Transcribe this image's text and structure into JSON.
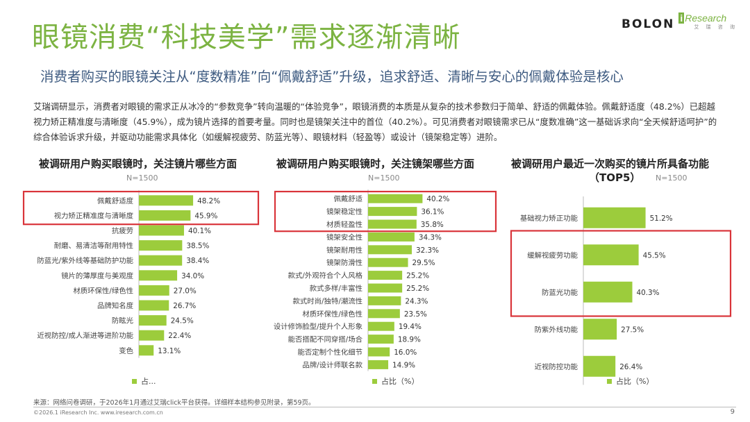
{
  "header": {
    "brand": "BOLON",
    "partner_logo": "iResearch",
    "partner_logo_sub": "艾 瑞 咨 询",
    "title": "眼镜消费“科技美学”需求逐渐清晰",
    "subtitle": "消费者购买的眼镜关注从“度数精准”向“佩戴舒适”升级，追求舒适、清晰与安心的佩戴体验是核心"
  },
  "intro": "艾瑞调研显示，消费者对眼镜的需求正从冰冷的“参数竞争”转向温暖的“体验竞争”，眼镜消费的本质是从复杂的技术参数归于简单、舒适的佩戴体验。佩戴舒适度（48.2%）已超越视力矫正精准度与清晰度（45.9%），成为镜片选择的首要考量。同时也是镜架关注中的首位（40.2%）。可见消费者对眼镜需求已从“度数准确”这一基础诉求向“全天候舒适呵护”的综合体验诉求升级，并驱动功能需求具体化（如缓解视疲劳、防蓝光等）、眼镜材料（轻盈等）或设计（镜架稳定等）进阶。",
  "chart_data": [
    {
      "type": "bar",
      "orientation": "horizontal",
      "title": "被调研用户购买眼镜时，关注镜片哪些方面",
      "sample": "N=1500",
      "legend": "占...",
      "categories": [
        "佩戴舒适度",
        "视力矫正精准度与清晰度",
        "抗疲劳",
        "耐磨、易清洁等耐用特性",
        "防蓝光/紫外线等基础防护功能",
        "镜片的薄厚度与美观度",
        "材质环保性/绿色性",
        "品牌知名度",
        "防眩光",
        "近视防控/成人渐进等进阶功能",
        "变色"
      ],
      "values": [
        48.2,
        45.9,
        40.1,
        38.5,
        38.4,
        34.0,
        27.0,
        26.7,
        24.5,
        22.4,
        13.1
      ],
      "value_labels": [
        "48.2%",
        "45.9%",
        "40.1%",
        "38.5%",
        "38.4%",
        "34.0%",
        "27.0%",
        "26.7%",
        "24.5%",
        "22.4%",
        "13.1%"
      ],
      "highlighted": [
        0,
        1
      ],
      "color": "#9ccc3c",
      "highlight_color": "#d9343a"
    },
    {
      "type": "bar",
      "orientation": "horizontal",
      "title": "被调研用户购买眼镜时，关注镜架哪些方面",
      "sample": "N=1500",
      "legend": "占比（%）",
      "categories": [
        "佩戴舒适",
        "镜架稳定性",
        "材质轻盈性",
        "镜架安全性",
        "镜架耐用性",
        "镜架防滑性",
        "款式/外观符合个人风格",
        "款式多样/丰富性",
        "款式时尚/独特/潮流性",
        "材质环保性/绿色性",
        "设计修饰脸型/提升个人形象",
        "能否搭配不同穿搭/场合",
        "能否定制个性化细节",
        "品牌/设计师联名款"
      ],
      "values": [
        40.2,
        36.1,
        35.8,
        34.3,
        32.3,
        29.5,
        25.2,
        25.2,
        24.3,
        23.5,
        19.4,
        18.9,
        16.0,
        14.9
      ],
      "value_labels": [
        "40.2%",
        "36.1%",
        "35.8%",
        "34.3%",
        "32.3%",
        "29.5%",
        "25.2%",
        "25.2%",
        "24.3%",
        "23.5%",
        "19.4%",
        "18.9%",
        "16.0%",
        "14.9%"
      ],
      "highlighted": [
        0,
        1,
        2
      ],
      "color": "#9ccc3c",
      "highlight_color": "#d9343a"
    },
    {
      "type": "bar",
      "orientation": "horizontal",
      "title": "被调研用户最近一次购买的镜片所具备功能",
      "title_line2": "（TOP5）",
      "sample": "N=1500",
      "legend": "占比（%）",
      "categories": [
        "基础视力矫正功能",
        "缓解视疲劳功能",
        "防蓝光功能",
        "防紫外线功能",
        "近视防控功能"
      ],
      "values": [
        51.2,
        45.5,
        40.3,
        27.5,
        26.4
      ],
      "value_labels": [
        "51.2%",
        "45.5%",
        "40.3%",
        "27.5%",
        "26.4%"
      ],
      "highlighted": [
        1,
        2
      ],
      "color": "#9ccc3c",
      "highlight_color": "#d9343a"
    }
  ],
  "footer": {
    "source": "来源：网络问卷调研，于2026年1月通过艾瑞click平台获得。详细样本结构参见附录，第59页。",
    "copyright": "©2026.1 iResearch Inc.                    www.iresearch.com.cn",
    "page": "9"
  }
}
